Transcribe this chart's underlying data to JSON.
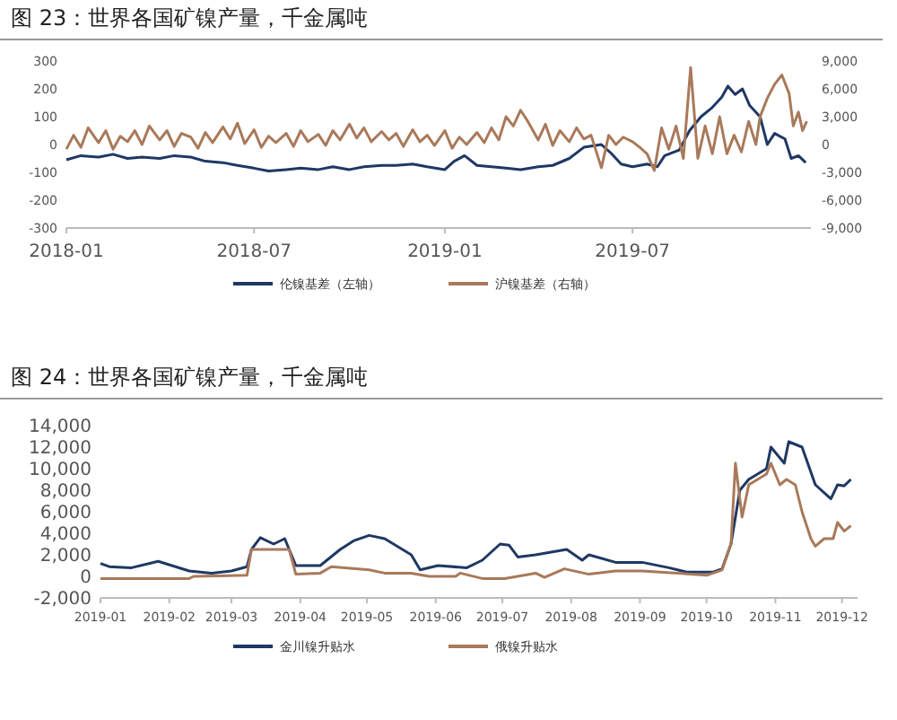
{
  "chart_data": [
    {
      "type": "line",
      "title": "图 23：世界各国矿镍产量，千金属吨",
      "legend": "bottom",
      "xlim": [
        "2018-01-01",
        "2019-12-20"
      ],
      "xticks": [
        "2018-01",
        "2018-07",
        "2019-01",
        "2019-07"
      ],
      "ylim": [
        -300,
        300
      ],
      "yticks": [
        -300,
        -200,
        -100,
        0,
        100,
        200,
        300
      ],
      "y2lim": [
        -9000,
        9000
      ],
      "y2ticks": [
        {
          "value": -9000,
          "label": "-9,000"
        },
        {
          "value": -6000,
          "label": "-6,000"
        },
        {
          "value": -3000,
          "label": "-3,000"
        },
        0,
        {
          "value": 3000,
          "label": "3,000"
        },
        {
          "value": 6000,
          "label": "6,000"
        },
        {
          "value": 9000,
          "label": "9,000"
        }
      ],
      "series": [
        {
          "name": "伦镍基差（左轴）",
          "color": "#1f3864",
          "x": [
            "2018-01-01",
            "2018-01-15",
            "2018-02-01",
            "2018-02-15",
            "2018-03-01",
            "2018-03-15",
            "2018-04-01",
            "2018-04-15",
            "2018-05-01",
            "2018-05-15",
            "2018-06-01",
            "2018-06-15",
            "2018-07-01",
            "2018-07-15",
            "2018-08-01",
            "2018-08-15",
            "2018-09-01",
            "2018-09-15",
            "2018-10-01",
            "2018-10-15",
            "2018-11-01",
            "2018-11-15",
            "2018-12-01",
            "2018-12-15",
            "2019-01-01",
            "2019-01-10",
            "2019-01-20",
            "2019-02-01",
            "2019-02-15",
            "2019-03-01",
            "2019-03-15",
            "2019-04-01",
            "2019-04-15",
            "2019-05-01",
            "2019-05-15",
            "2019-06-01",
            "2019-06-10",
            "2019-06-20",
            "2019-07-01",
            "2019-07-15",
            "2019-07-25",
            "2019-08-01",
            "2019-08-15",
            "2019-08-25",
            "2019-09-05",
            "2019-09-15",
            "2019-09-25",
            "2019-10-01",
            "2019-10-08",
            "2019-10-15",
            "2019-10-22",
            "2019-11-01",
            "2019-11-08",
            "2019-11-15",
            "2019-11-25",
            "2019-12-01",
            "2019-12-08",
            "2019-12-15"
          ],
          "values": [
            -55,
            -40,
            -45,
            -35,
            -50,
            -45,
            -50,
            -40,
            -45,
            -60,
            -65,
            -75,
            -85,
            -95,
            -90,
            -85,
            -90,
            -80,
            -90,
            -80,
            -75,
            -75,
            -70,
            -80,
            -90,
            -60,
            -40,
            -75,
            -80,
            -85,
            -90,
            -80,
            -75,
            -50,
            -10,
            0,
            -30,
            -70,
            -80,
            -70,
            -80,
            -40,
            -20,
            50,
            100,
            130,
            170,
            210,
            180,
            200,
            140,
            100,
            0,
            40,
            20,
            -50,
            -40,
            -65
          ]
        },
        {
          "name": "沪镍基差（右轴）",
          "color": "#a9795a",
          "axis": "y2",
          "x": [
            "2018-01-01",
            "2018-01-08",
            "2018-01-15",
            "2018-01-22",
            "2018-02-01",
            "2018-02-08",
            "2018-02-15",
            "2018-02-22",
            "2018-03-01",
            "2018-03-08",
            "2018-03-15",
            "2018-03-22",
            "2018-04-01",
            "2018-04-08",
            "2018-04-15",
            "2018-04-22",
            "2018-05-01",
            "2018-05-08",
            "2018-05-15",
            "2018-05-22",
            "2018-06-01",
            "2018-06-08",
            "2018-06-15",
            "2018-06-22",
            "2018-07-01",
            "2018-07-08",
            "2018-07-15",
            "2018-07-22",
            "2018-08-01",
            "2018-08-08",
            "2018-08-15",
            "2018-08-22",
            "2018-09-01",
            "2018-09-08",
            "2018-09-15",
            "2018-09-22",
            "2018-10-01",
            "2018-10-08",
            "2018-10-15",
            "2018-10-22",
            "2018-11-01",
            "2018-11-08",
            "2018-11-15",
            "2018-11-22",
            "2018-12-01",
            "2018-12-08",
            "2018-12-15",
            "2018-12-22",
            "2019-01-01",
            "2019-01-08",
            "2019-01-15",
            "2019-01-22",
            "2019-02-01",
            "2019-02-08",
            "2019-02-15",
            "2019-02-22",
            "2019-03-01",
            "2019-03-08",
            "2019-03-15",
            "2019-03-22",
            "2019-04-01",
            "2019-04-08",
            "2019-04-15",
            "2019-04-22",
            "2019-05-01",
            "2019-05-08",
            "2019-05-15",
            "2019-05-22",
            "2019-06-01",
            "2019-06-08",
            "2019-06-15",
            "2019-06-22",
            "2019-07-01",
            "2019-07-08",
            "2019-07-15",
            "2019-07-22",
            "2019-07-29",
            "2019-08-05",
            "2019-08-12",
            "2019-08-19",
            "2019-08-26",
            "2019-09-02",
            "2019-09-09",
            "2019-09-16",
            "2019-09-23",
            "2019-09-30",
            "2019-10-07",
            "2019-10-14",
            "2019-10-21",
            "2019-10-28",
            "2019-11-01",
            "2019-11-08",
            "2019-11-15",
            "2019-11-22",
            "2019-11-29",
            "2019-12-03",
            "2019-12-08",
            "2019-12-12",
            "2019-12-16"
          ],
          "values": [
            -500,
            1000,
            -300,
            1800,
            200,
            1500,
            -500,
            900,
            300,
            1500,
            0,
            2000,
            500,
            1500,
            -200,
            1200,
            800,
            -400,
            1300,
            200,
            1900,
            600,
            2300,
            100,
            1600,
            -300,
            900,
            200,
            1200,
            -200,
            1500,
            300,
            1100,
            -100,
            1500,
            500,
            2200,
            700,
            1800,
            300,
            1400,
            500,
            1200,
            -200,
            1600,
            300,
            1000,
            -100,
            1500,
            -400,
            800,
            0,
            1300,
            200,
            1800,
            500,
            3000,
            2000,
            3700,
            2500,
            500,
            2200,
            -100,
            1500,
            300,
            1800,
            600,
            1000,
            -2500,
            1000,
            0,
            800,
            300,
            -300,
            -1000,
            -2800,
            1800,
            -500,
            2000,
            -1500,
            8300,
            -1500,
            2000,
            -1000,
            3000,
            -1000,
            1000,
            -800,
            2500,
            0,
            3000,
            5000,
            6500,
            7500,
            5500,
            2000,
            3500,
            1500,
            2500
          ]
        }
      ]
    },
    {
      "type": "line",
      "title": "图 24：世界各国矿镍产量，千金属吨",
      "legend": "bottom",
      "xlim": [
        "2019-01-01",
        "2019-12-08"
      ],
      "xticks": [
        "2019-01",
        "2019-02",
        "2019-03",
        "2019-04",
        "2019-05",
        "2019-06",
        "2019-07",
        "2019-08",
        "2019-09",
        "2019-10",
        "2019-11",
        "2019-12"
      ],
      "ylim": [
        -2000,
        14000
      ],
      "yticks": [
        {
          "value": -2000,
          "label": "-2,000"
        },
        0,
        {
          "value": 2000,
          "label": "2,000"
        },
        {
          "value": 4000,
          "label": "4,000"
        },
        {
          "value": 6000,
          "label": "6,000"
        },
        {
          "value": 8000,
          "label": "8,000"
        },
        {
          "value": 10000,
          "label": "10,000"
        },
        {
          "value": 12000,
          "label": "12,000"
        },
        {
          "value": 14000,
          "label": "14,000"
        }
      ],
      "series": [
        {
          "name": "金川镍升贴水",
          "color": "#1f3864",
          "x": [
            "2019-01-01",
            "2019-01-05",
            "2019-01-15",
            "2019-01-27",
            "2019-02-10",
            "2019-02-20",
            "2019-03-01",
            "2019-03-08",
            "2019-03-10",
            "2019-03-14",
            "2019-03-20",
            "2019-03-25",
            "2019-03-30",
            "2019-04-10",
            "2019-04-19",
            "2019-04-25",
            "2019-05-02",
            "2019-05-09",
            "2019-05-21",
            "2019-05-25",
            "2019-06-02",
            "2019-06-15",
            "2019-06-22",
            "2019-06-30",
            "2019-07-04",
            "2019-07-08",
            "2019-07-16",
            "2019-07-30",
            "2019-08-06",
            "2019-08-09",
            "2019-08-21",
            "2019-09-02",
            "2019-09-14",
            "2019-09-22",
            "2019-10-04",
            "2019-10-08",
            "2019-10-12",
            "2019-10-16",
            "2019-10-20",
            "2019-10-28",
            "2019-10-30",
            "2019-11-05",
            "2019-11-07",
            "2019-11-13",
            "2019-11-19",
            "2019-11-26",
            "2019-11-29",
            "2019-12-02",
            "2019-12-05"
          ],
          "values": [
            1200,
            900,
            800,
            1400,
            500,
            300,
            500,
            900,
            2500,
            3600,
            3000,
            3500,
            1000,
            1000,
            2500,
            3300,
            3800,
            3500,
            2000,
            600,
            1000,
            800,
            1500,
            3000,
            2900,
            1800,
            2000,
            2500,
            1500,
            2000,
            1300,
            1300,
            800,
            400,
            400,
            700,
            3000,
            8000,
            9000,
            10000,
            12000,
            10500,
            12500,
            12000,
            8500,
            7200,
            8500,
            8400,
            9000
          ]
        },
        {
          "name": "俄镍升贴水",
          "color": "#a9795a",
          "x": [
            "2019-01-01",
            "2019-02-10",
            "2019-02-12",
            "2019-03-08",
            "2019-03-10",
            "2019-03-27",
            "2019-03-30",
            "2019-04-10",
            "2019-04-15",
            "2019-05-02",
            "2019-05-09",
            "2019-05-21",
            "2019-05-29",
            "2019-06-10",
            "2019-06-12",
            "2019-06-22",
            "2019-07-02",
            "2019-07-16",
            "2019-07-20",
            "2019-07-29",
            "2019-08-09",
            "2019-08-21",
            "2019-09-02",
            "2019-09-18",
            "2019-10-01",
            "2019-10-08",
            "2019-10-12",
            "2019-10-14",
            "2019-10-17",
            "2019-10-20",
            "2019-10-28",
            "2019-10-30",
            "2019-11-03",
            "2019-11-06",
            "2019-11-10",
            "2019-11-13",
            "2019-11-17",
            "2019-11-19",
            "2019-11-23",
            "2019-11-27",
            "2019-11-29",
            "2019-12-02",
            "2019-12-05"
          ],
          "values": [
            -200,
            -200,
            0,
            100,
            2500,
            2500,
            200,
            300,
            900,
            600,
            300,
            300,
            0,
            0,
            300,
            -200,
            -200,
            300,
            -100,
            700,
            200,
            500,
            500,
            300,
            100,
            600,
            3000,
            10500,
            5500,
            8500,
            9500,
            10500,
            8500,
            9000,
            8500,
            6000,
            3500,
            2800,
            3500,
            3500,
            5000,
            4200,
            4700
          ]
        }
      ]
    }
  ]
}
